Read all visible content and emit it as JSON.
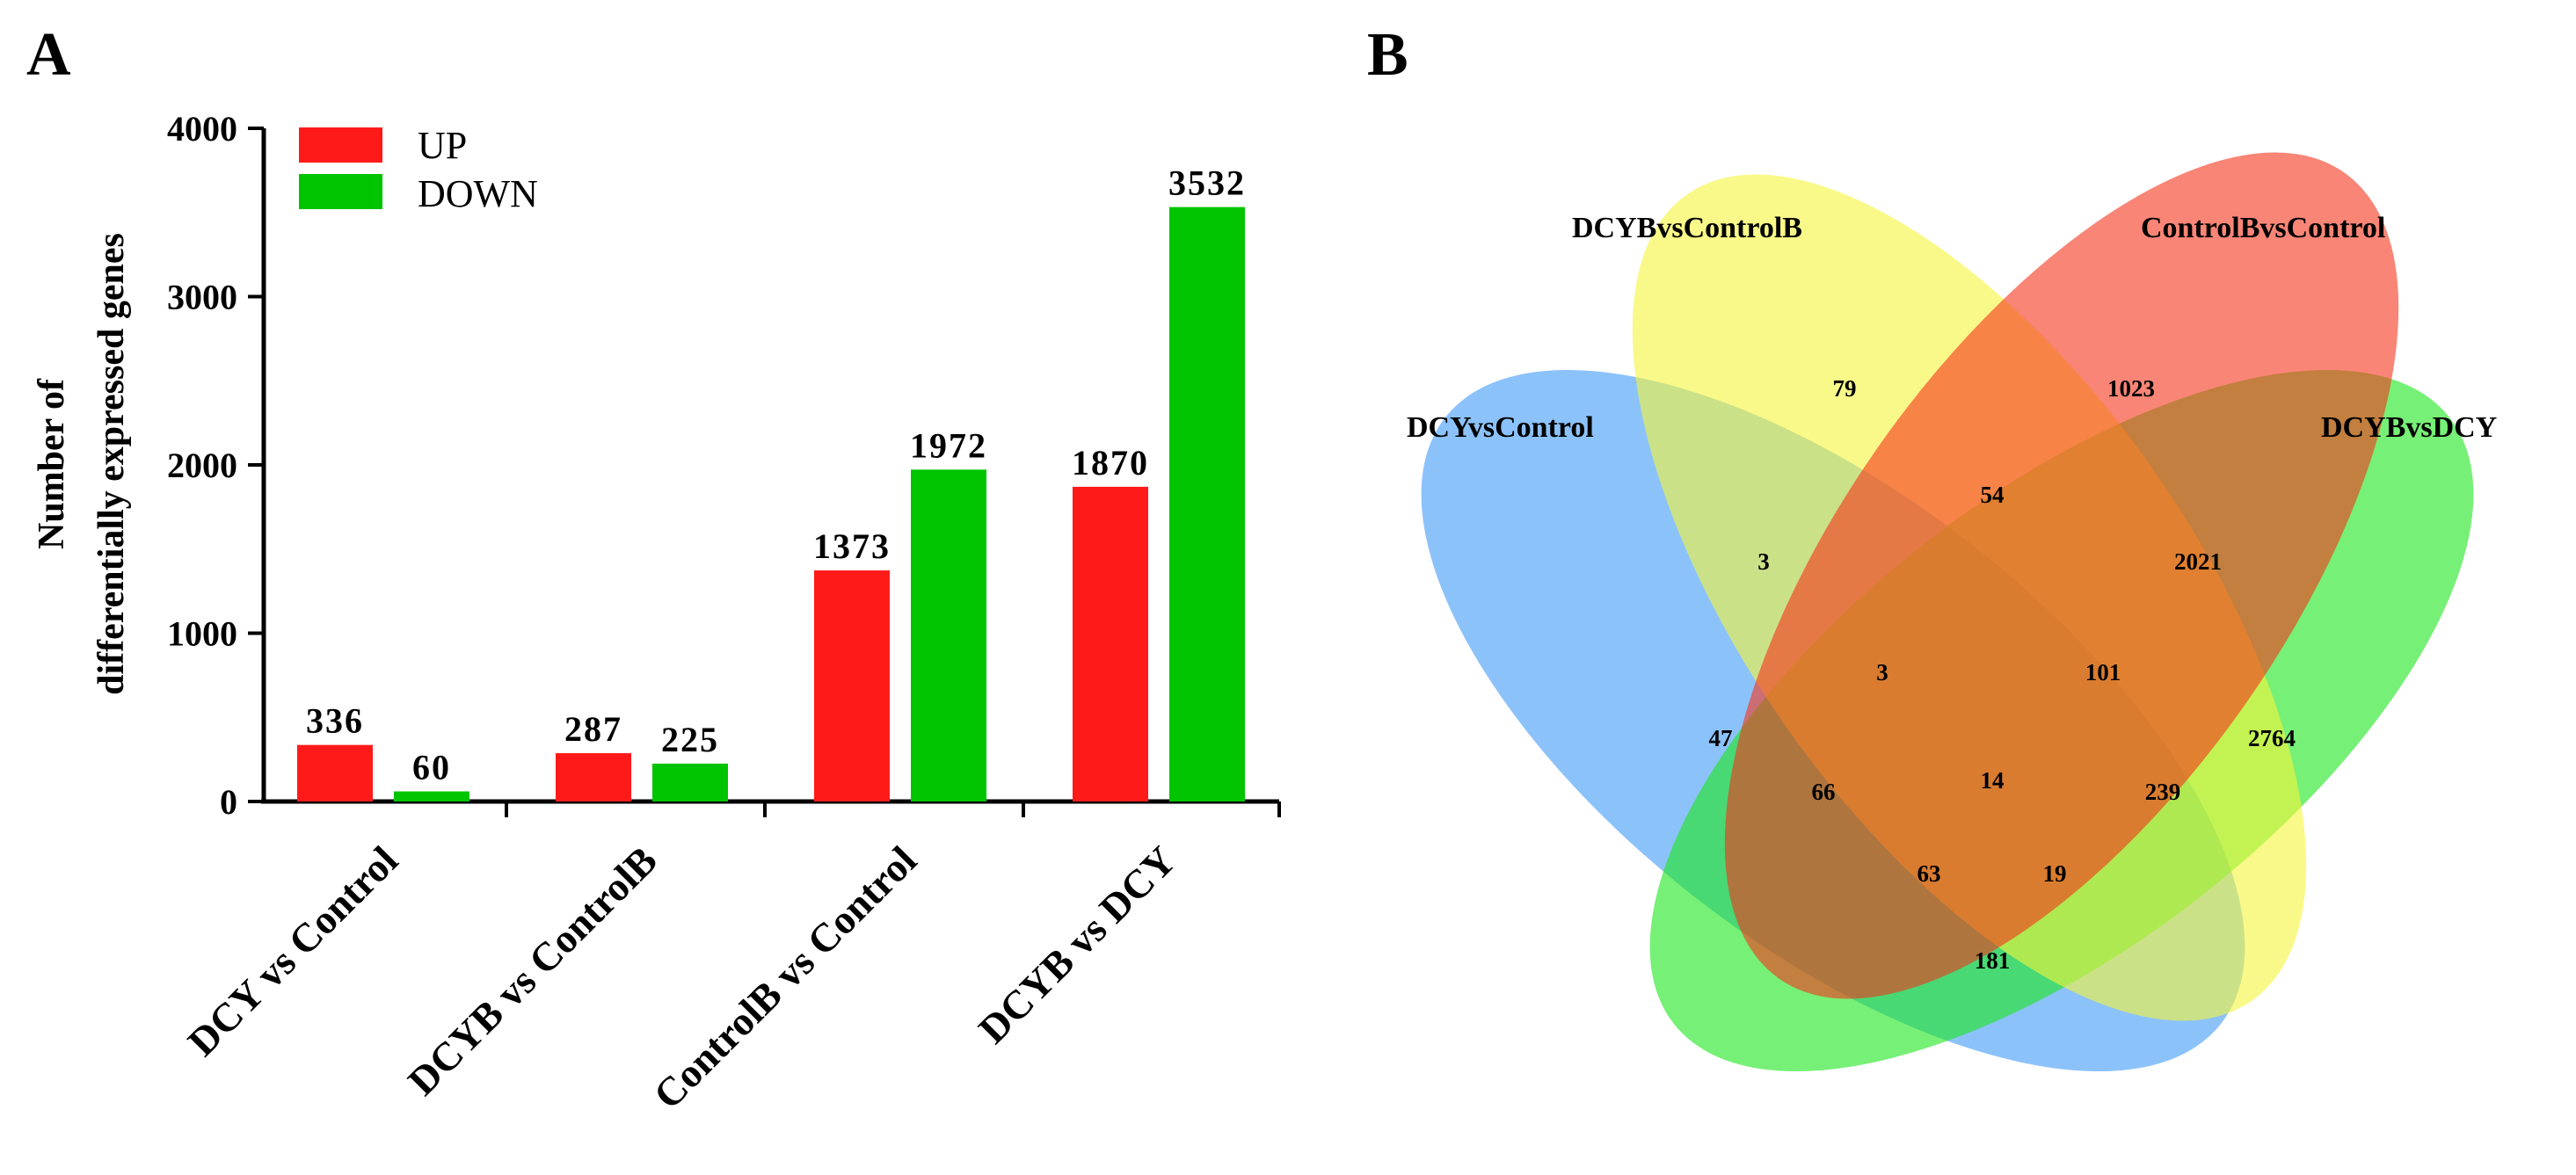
{
  "panels": {
    "a_label": "A",
    "b_label": "B"
  },
  "chart_data": [
    {
      "type": "bar",
      "panel": "A",
      "ylabel_line1": "Number of",
      "ylabel_line2": "differentially expressed genes",
      "xlabel": "",
      "ylim": [
        0,
        4000
      ],
      "yticks": [
        0,
        1000,
        2000,
        3000,
        4000
      ],
      "grid": false,
      "legend_position": "top-left",
      "categories": [
        "DCY vs Control",
        "DCYB vs ControlB",
        "ControlB vs Control",
        "DCYB vs DCY"
      ],
      "series": [
        {
          "name": "UP",
          "color": "#ff1a1a",
          "values": [
            336,
            287,
            1373,
            1870
          ]
        },
        {
          "name": "DOWN",
          "color": "#00c400",
          "values": [
            60,
            225,
            1972,
            3532
          ]
        }
      ],
      "data_labels": [
        [
          "336",
          "287",
          "1373",
          "1870"
        ],
        [
          "60",
          "225",
          "1972",
          "3532"
        ]
      ]
    },
    {
      "type": "venn",
      "panel": "B",
      "sets": [
        {
          "name": "DCYvsControl",
          "color": "#2e90f5"
        },
        {
          "name": "DCYBvsControlB",
          "color": "#f5f53a"
        },
        {
          "name": "ControlBvsControl",
          "color": "#f5331a"
        },
        {
          "name": "DCYBvsDCY",
          "color": "#1ae61a"
        }
      ],
      "regions": [
        {
          "sets": [
            "DCYBvsControlB"
          ],
          "count": 79
        },
        {
          "sets": [
            "ControlBvsControl"
          ],
          "count": 1023
        },
        {
          "sets": [
            "DCYBvsControlB",
            "ControlBvsControl"
          ],
          "count": 54
        },
        {
          "sets": [
            "DCYvsControl",
            "DCYBvsControlB"
          ],
          "count": 3
        },
        {
          "sets": [
            "ControlBvsControl",
            "DCYBvsDCY"
          ],
          "count": 2021
        },
        {
          "sets": [
            "DCYvsControl",
            "DCYBvsControlB",
            "ControlBvsControl"
          ],
          "count": 3
        },
        {
          "sets": [
            "DCYBvsControlB",
            "ControlBvsControl",
            "DCYBvsDCY"
          ],
          "count": 101
        },
        {
          "sets": [
            "DCYvsControl"
          ],
          "count": 47
        },
        {
          "sets": [
            "DCYBvsDCY"
          ],
          "count": 2764
        },
        {
          "sets": [
            "DCYvsControl",
            "DCYBvsControlB",
            "ControlBvsControl",
            "DCYBvsDCY"
          ],
          "count": 14
        },
        {
          "sets": [
            "DCYvsControl",
            "DCYBvsControlB",
            "DCYBvsDCY"
          ],
          "count": 66
        },
        {
          "sets": [
            "ControlBvsControl",
            "DCYBvsDCY",
            "DCYBvsControlB"
          ],
          "count": 239
        },
        {
          "sets": [
            "DCYvsControl",
            "DCYBvsControlB",
            "DCYBvsDCY"
          ],
          "count": 63
        },
        {
          "sets": [
            "DCYvsControl",
            "ControlBvsControl",
            "DCYBvsDCY"
          ],
          "count": 19
        },
        {
          "sets": [
            "DCYvsControl",
            "DCYBvsDCY"
          ],
          "count": 181
        }
      ]
    }
  ]
}
